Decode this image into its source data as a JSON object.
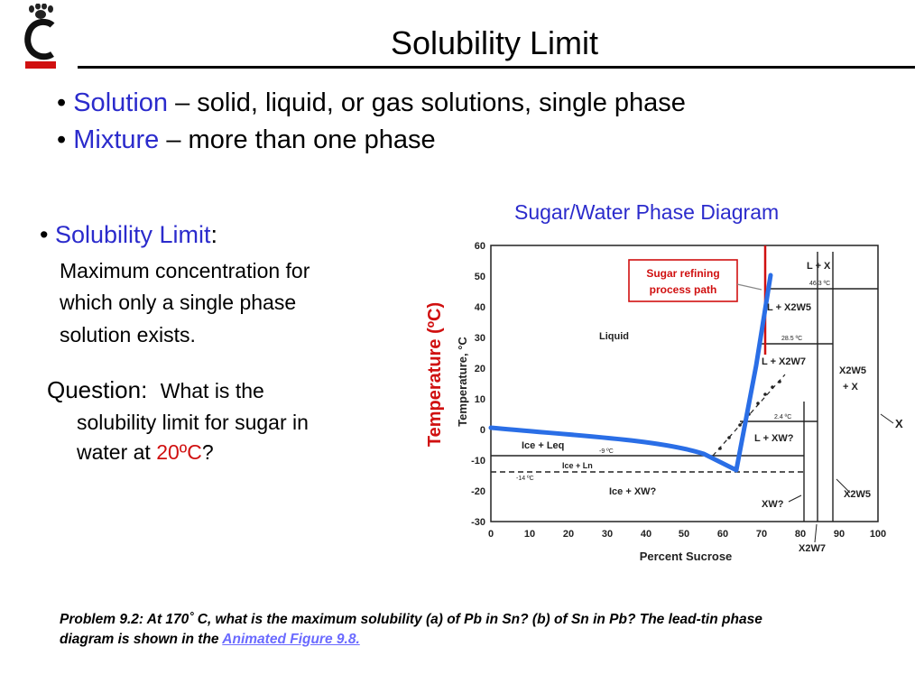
{
  "slide": {
    "title": "Solubility Limit"
  },
  "bullets": [
    {
      "term": "Solution",
      "text": " – solid, liquid, or gas solutions, single phase"
    },
    {
      "term": "Mixture",
      "text": " – more than one phase"
    }
  ],
  "solubility": {
    "term": "Solubility Limit",
    "colon": ":",
    "lines": [
      "Maximum concentration for",
      "which only a single phase",
      "solution exists."
    ]
  },
  "question": {
    "label": "Question:",
    "line1": "What is the",
    "line2": "solubility limit for sugar in",
    "line3_pre": "water at ",
    "line3_value": "20ºC",
    "line3_post": "?"
  },
  "diagram": {
    "title": "Sugar/Water Phase Diagram",
    "outer_ylabel": "Temperature (ºC)",
    "inner_ylabel": "Temperature, °C",
    "xlabel": "Percent Sucrose",
    "x_ticks": [
      "0",
      "10",
      "20",
      "30",
      "40",
      "50",
      "60",
      "70",
      "80",
      "90",
      "100"
    ],
    "y_ticks": [
      "60",
      "50",
      "40",
      "30",
      "20",
      "10",
      "0",
      "-10",
      "-20",
      "-30"
    ],
    "callout_line1": "Sugar refining",
    "callout_line2": "process path",
    "regions": {
      "liquid": "Liquid",
      "l_x": "L + X",
      "l_x2w5": "L + X2W5",
      "l_x2w7": "L + X2W7",
      "x2w5_x_1": "X2W5",
      "x2w5_x_2": "+ X",
      "l_xw": "L + XW?",
      "ice_leq": "Ice + Leq",
      "ice_ln": "Ice + Ln",
      "ice_xw": "Ice + XW?",
      "xw": "XW?",
      "x2w5_right": "X2W5",
      "x2w7_bottom": "X2W7",
      "x_right": "X"
    },
    "temps": {
      "t1": "46.3 ºC",
      "t2": "28.5 ºC",
      "t3": "2.4 ºC",
      "t4": "-9 ºC",
      "t5": "-14 ºC"
    }
  },
  "problem": {
    "text": "Problem 9.2: At 170˚ C, what is the maximum solubility (a) of Pb in Sn? (b) of Sn in Pb?  The lead-tin phase diagram is shown in the ",
    "link": "Animated Figure 9.8."
  }
}
